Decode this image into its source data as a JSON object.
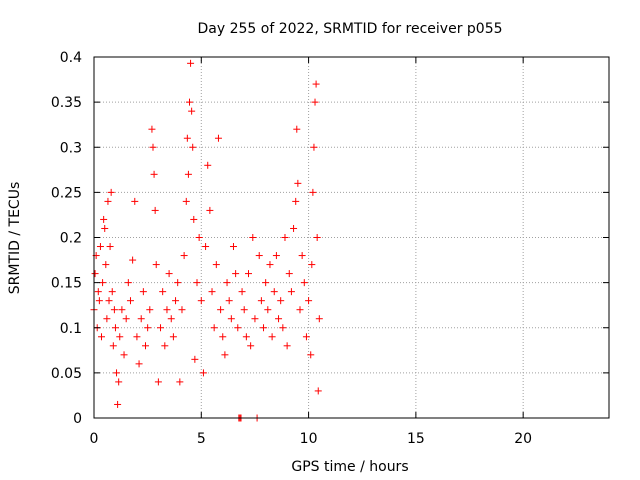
{
  "chart_data": {
    "type": "scatter",
    "title": "Day 255 of 2022, SRMTID for receiver p055",
    "xlabel": "GPS time / hours",
    "ylabel": "SRMTID / TECUs",
    "xlim": [
      0,
      24
    ],
    "ylim": [
      0,
      0.4
    ],
    "xticks": [
      0,
      5,
      10,
      15,
      20
    ],
    "xtick_labels": [
      "0",
      "5",
      "10",
      "15",
      "20"
    ],
    "yticks": [
      0,
      0.05,
      0.1,
      0.15,
      0.2,
      0.25,
      0.3,
      0.35,
      0.4
    ],
    "ytick_labels": [
      "0",
      "0.05",
      "0.1",
      "0.15",
      "0.2",
      "0.25",
      "0.3",
      "0.35",
      "0.4"
    ],
    "grid": true,
    "marker": "+",
    "color": "#ff0000",
    "series": [
      {
        "name": "SRMTID",
        "points": [
          [
            0.0,
            0.12
          ],
          [
            0.05,
            0.16
          ],
          [
            0.1,
            0.18
          ],
          [
            0.15,
            0.1
          ],
          [
            0.2,
            0.14
          ],
          [
            0.25,
            0.13
          ],
          [
            0.3,
            0.19
          ],
          [
            0.35,
            0.09
          ],
          [
            0.4,
            0.15
          ],
          [
            0.45,
            0.22
          ],
          [
            0.5,
            0.21
          ],
          [
            0.55,
            0.17
          ],
          [
            0.6,
            0.11
          ],
          [
            0.65,
            0.24
          ],
          [
            0.7,
            0.13
          ],
          [
            0.75,
            0.19
          ],
          [
            0.8,
            0.25
          ],
          [
            0.85,
            0.14
          ],
          [
            0.9,
            0.08
          ],
          [
            0.95,
            0.12
          ],
          [
            1.0,
            0.1
          ],
          [
            1.05,
            0.05
          ],
          [
            1.1,
            0.015
          ],
          [
            1.15,
            0.04
          ],
          [
            1.2,
            0.09
          ],
          [
            1.3,
            0.12
          ],
          [
            1.4,
            0.07
          ],
          [
            1.5,
            0.11
          ],
          [
            1.6,
            0.15
          ],
          [
            1.7,
            0.13
          ],
          [
            1.8,
            0.175
          ],
          [
            1.9,
            0.24
          ],
          [
            2.0,
            0.09
          ],
          [
            2.1,
            0.06
          ],
          [
            2.2,
            0.11
          ],
          [
            2.3,
            0.14
          ],
          [
            2.4,
            0.08
          ],
          [
            2.5,
            0.1
          ],
          [
            2.6,
            0.12
          ],
          [
            2.7,
            0.32
          ],
          [
            2.75,
            0.3
          ],
          [
            2.8,
            0.27
          ],
          [
            2.85,
            0.23
          ],
          [
            2.9,
            0.17
          ],
          [
            3.0,
            0.04
          ],
          [
            3.1,
            0.1
          ],
          [
            3.2,
            0.14
          ],
          [
            3.3,
            0.08
          ],
          [
            3.4,
            0.12
          ],
          [
            3.5,
            0.16
          ],
          [
            3.6,
            0.11
          ],
          [
            3.7,
            0.09
          ],
          [
            3.8,
            0.13
          ],
          [
            3.9,
            0.15
          ],
          [
            4.0,
            0.04
          ],
          [
            4.1,
            0.12
          ],
          [
            4.2,
            0.18
          ],
          [
            4.3,
            0.24
          ],
          [
            4.35,
            0.31
          ],
          [
            4.4,
            0.27
          ],
          [
            4.45,
            0.35
          ],
          [
            4.5,
            0.393
          ],
          [
            4.55,
            0.34
          ],
          [
            4.6,
            0.3
          ],
          [
            4.65,
            0.22
          ],
          [
            4.7,
            0.065
          ],
          [
            4.8,
            0.15
          ],
          [
            4.9,
            0.2
          ],
          [
            5.0,
            0.13
          ],
          [
            5.1,
            0.05
          ],
          [
            5.2,
            0.19
          ],
          [
            5.3,
            0.28
          ],
          [
            5.4,
            0.23
          ],
          [
            5.5,
            0.14
          ],
          [
            5.6,
            0.1
          ],
          [
            5.7,
            0.17
          ],
          [
            5.8,
            0.31
          ],
          [
            5.9,
            0.12
          ],
          [
            6.0,
            0.09
          ],
          [
            6.1,
            0.07
          ],
          [
            6.2,
            0.15
          ],
          [
            6.3,
            0.13
          ],
          [
            6.4,
            0.11
          ],
          [
            6.5,
            0.19
          ],
          [
            6.6,
            0.16
          ],
          [
            6.7,
            0.1
          ],
          [
            6.75,
            0.0
          ],
          [
            6.8,
            0.0
          ],
          [
            6.85,
            0.0
          ],
          [
            6.9,
            0.14
          ],
          [
            7.0,
            0.12
          ],
          [
            7.1,
            0.09
          ],
          [
            7.2,
            0.16
          ],
          [
            7.3,
            0.08
          ],
          [
            7.4,
            0.2
          ],
          [
            7.5,
            0.11
          ],
          [
            7.6,
            0.0
          ],
          [
            7.7,
            0.18
          ],
          [
            7.8,
            0.13
          ],
          [
            7.9,
            0.1
          ],
          [
            8.0,
            0.15
          ],
          [
            8.1,
            0.12
          ],
          [
            8.2,
            0.17
          ],
          [
            8.3,
            0.09
          ],
          [
            8.4,
            0.14
          ],
          [
            8.5,
            0.18
          ],
          [
            8.6,
            0.11
          ],
          [
            8.7,
            0.13
          ],
          [
            8.8,
            0.1
          ],
          [
            8.9,
            0.2
          ],
          [
            9.0,
            0.08
          ],
          [
            9.1,
            0.16
          ],
          [
            9.2,
            0.14
          ],
          [
            9.3,
            0.21
          ],
          [
            9.4,
            0.24
          ],
          [
            9.45,
            0.32
          ],
          [
            9.5,
            0.26
          ],
          [
            9.6,
            0.12
          ],
          [
            9.7,
            0.18
          ],
          [
            9.8,
            0.15
          ],
          [
            9.9,
            0.09
          ],
          [
            10.0,
            0.13
          ],
          [
            10.1,
            0.07
          ],
          [
            10.15,
            0.17
          ],
          [
            10.2,
            0.25
          ],
          [
            10.25,
            0.3
          ],
          [
            10.3,
            0.35
          ],
          [
            10.35,
            0.37
          ],
          [
            10.4,
            0.2
          ],
          [
            10.45,
            0.03
          ],
          [
            10.5,
            0.11
          ]
        ]
      }
    ]
  }
}
